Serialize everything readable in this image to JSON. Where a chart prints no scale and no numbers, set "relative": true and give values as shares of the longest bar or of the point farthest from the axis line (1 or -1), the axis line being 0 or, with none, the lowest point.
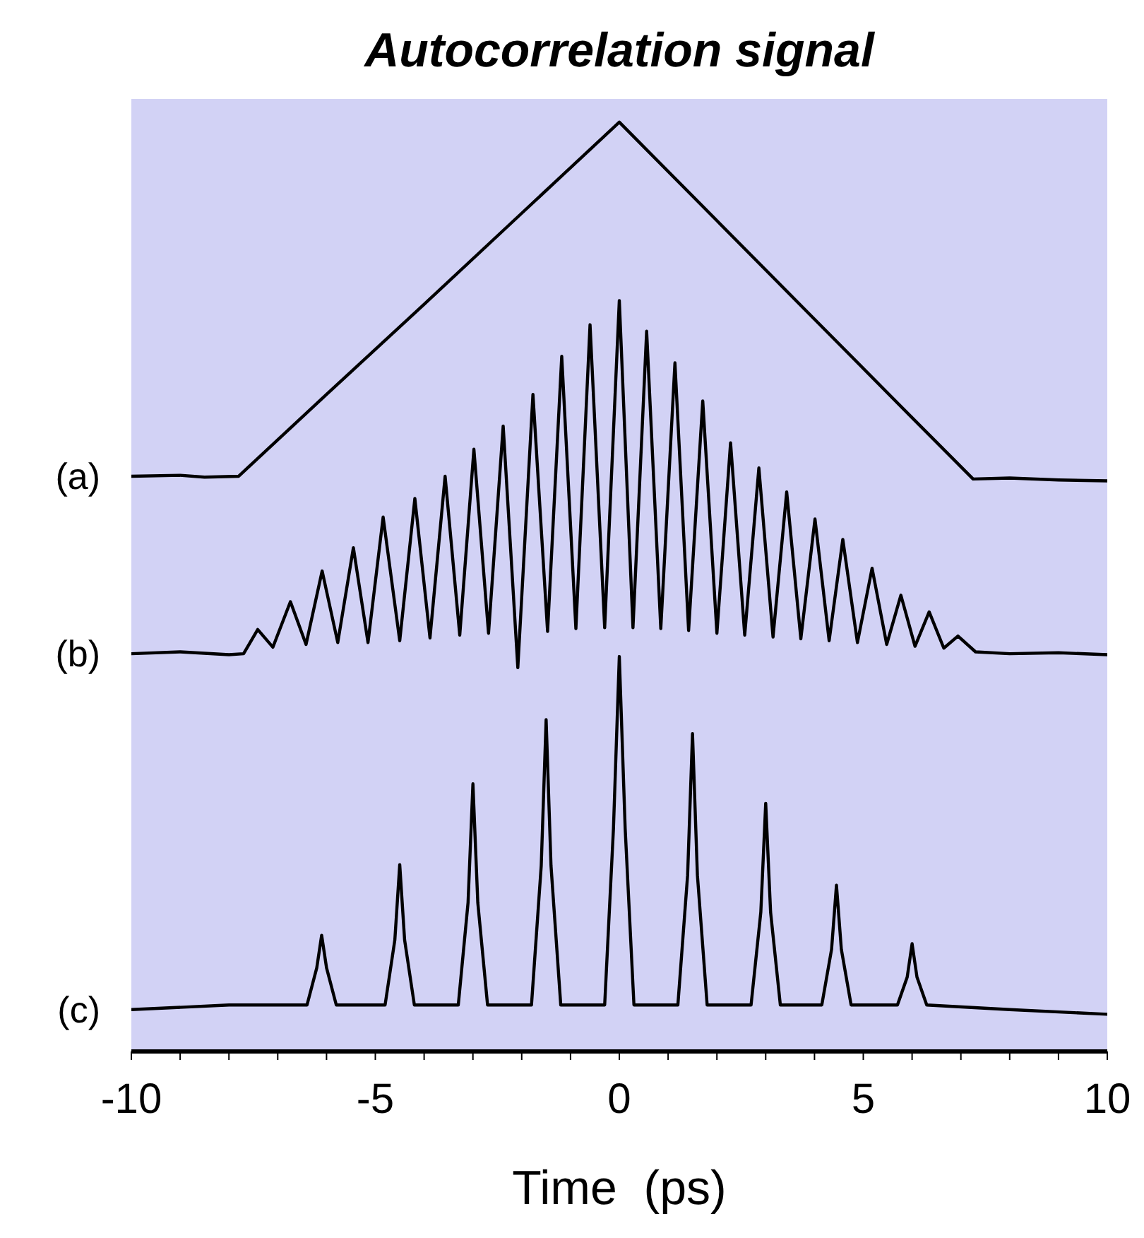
{
  "chart_data": {
    "type": "line",
    "title": "Autocorrelation signal",
    "xlabel": "Time  (ps)",
    "relative": true,
    "xlim": [
      -10,
      10
    ],
    "xticks": [
      -10,
      {
        "value": -9,
        "label": null
      },
      {
        "value": -8,
        "label": null
      },
      {
        "value": -7,
        "label": null
      },
      {
        "value": -6,
        "label": null
      },
      -5,
      {
        "value": -4,
        "label": null
      },
      {
        "value": -3,
        "label": null
      },
      {
        "value": -2,
        "label": null
      },
      {
        "value": -1,
        "label": null
      },
      0,
      {
        "value": 1,
        "label": null
      },
      {
        "value": 2,
        "label": null
      },
      {
        "value": 3,
        "label": null
      },
      {
        "value": 4,
        "label": null
      },
      5,
      {
        "value": 6,
        "label": null
      },
      {
        "value": 7,
        "label": null
      },
      {
        "value": 8,
        "label": null
      },
      {
        "value": 9,
        "label": null
      },
      10
    ],
    "grid": false,
    "marker": "none",
    "line_style": "solid",
    "series": [
      {
        "name": "(a)",
        "color": "#000000",
        "x": [
          -10,
          -9,
          -8.5,
          -7.8,
          -6,
          -4,
          -2,
          0,
          2,
          4,
          6,
          7.25,
          8,
          9,
          10
        ],
        "values": [
          0.619,
          0.62,
          0.618,
          0.619,
          0.707,
          0.804,
          0.902,
          1,
          0.894,
          0.788,
          0.682,
          0.616,
          0.617,
          0.615,
          0.614
        ]
      },
      {
        "name": "(b)",
        "color": "#000000",
        "x": [
          -10,
          -9,
          -8,
          -7.7,
          -7.41,
          -7.1,
          -6.74,
          -6.42,
          -6.09,
          -5.77,
          -5.45,
          -5.15,
          -4.84,
          -4.5,
          -4.19,
          -3.88,
          -3.57,
          -3.27,
          -2.98,
          -2.68,
          -2.38,
          -2.08,
          -1.77,
          -1.47,
          -1.18,
          -0.89,
          -0.6,
          -0.3,
          0,
          0.28,
          0.56,
          0.85,
          1.14,
          1.42,
          1.71,
          2,
          2.28,
          2.57,
          2.86,
          3.15,
          3.43,
          3.72,
          4.01,
          4.3,
          4.58,
          4.88,
          5.18,
          5.48,
          5.77,
          6.06,
          6.35,
          6.65,
          6.94,
          7.3,
          8,
          9,
          10
        ],
        "values": [
          0.428,
          0.43,
          0.427,
          0.428,
          0.454,
          0.435,
          0.484,
          0.438,
          0.517,
          0.44,
          0.542,
          0.44,
          0.575,
          0.442,
          0.595,
          0.445,
          0.619,
          0.448,
          0.648,
          0.45,
          0.673,
          0.413,
          0.707,
          0.452,
          0.748,
          0.455,
          0.782,
          0.456,
          0.808,
          0.456,
          0.775,
          0.455,
          0.741,
          0.453,
          0.7,
          0.45,
          0.655,
          0.448,
          0.628,
          0.446,
          0.602,
          0.444,
          0.573,
          0.442,
          0.551,
          0.44,
          0.52,
          0.438,
          0.491,
          0.436,
          0.473,
          0.434,
          0.447,
          0.43,
          0.428,
          0.429,
          0.427
        ]
      },
      {
        "name": "(c)",
        "color": "#000000",
        "x": [
          -10,
          -8,
          -6.4,
          -6.2,
          -6.1,
          -6,
          -5.8,
          -4.8,
          -4.6,
          -4.5,
          -4.4,
          -4.2,
          -3.3,
          -3.1,
          -3,
          -2.9,
          -2.7,
          -1.8,
          -1.6,
          -1.5,
          -1.4,
          -1.2,
          -0.3,
          -0.12,
          0,
          0.12,
          0.3,
          1.2,
          1.4,
          1.5,
          1.6,
          1.8,
          2.7,
          2.9,
          3,
          3.1,
          3.3,
          4.15,
          4.35,
          4.45,
          4.55,
          4.75,
          5.7,
          5.9,
          6,
          6.1,
          6.3,
          8,
          10
        ],
        "values": [
          0.045,
          0.05,
          0.05,
          0.09,
          0.125,
          0.09,
          0.05,
          0.05,
          0.12,
          0.201,
          0.12,
          0.05,
          0.05,
          0.16,
          0.288,
          0.16,
          0.05,
          0.05,
          0.2,
          0.357,
          0.2,
          0.05,
          0.05,
          0.24,
          0.425,
          0.24,
          0.05,
          0.05,
          0.19,
          0.342,
          0.19,
          0.05,
          0.05,
          0.15,
          0.267,
          0.15,
          0.05,
          0.05,
          0.11,
          0.179,
          0.11,
          0.05,
          0.05,
          0.08,
          0.116,
          0.08,
          0.05,
          0.045,
          0.04
        ]
      }
    ]
  }
}
